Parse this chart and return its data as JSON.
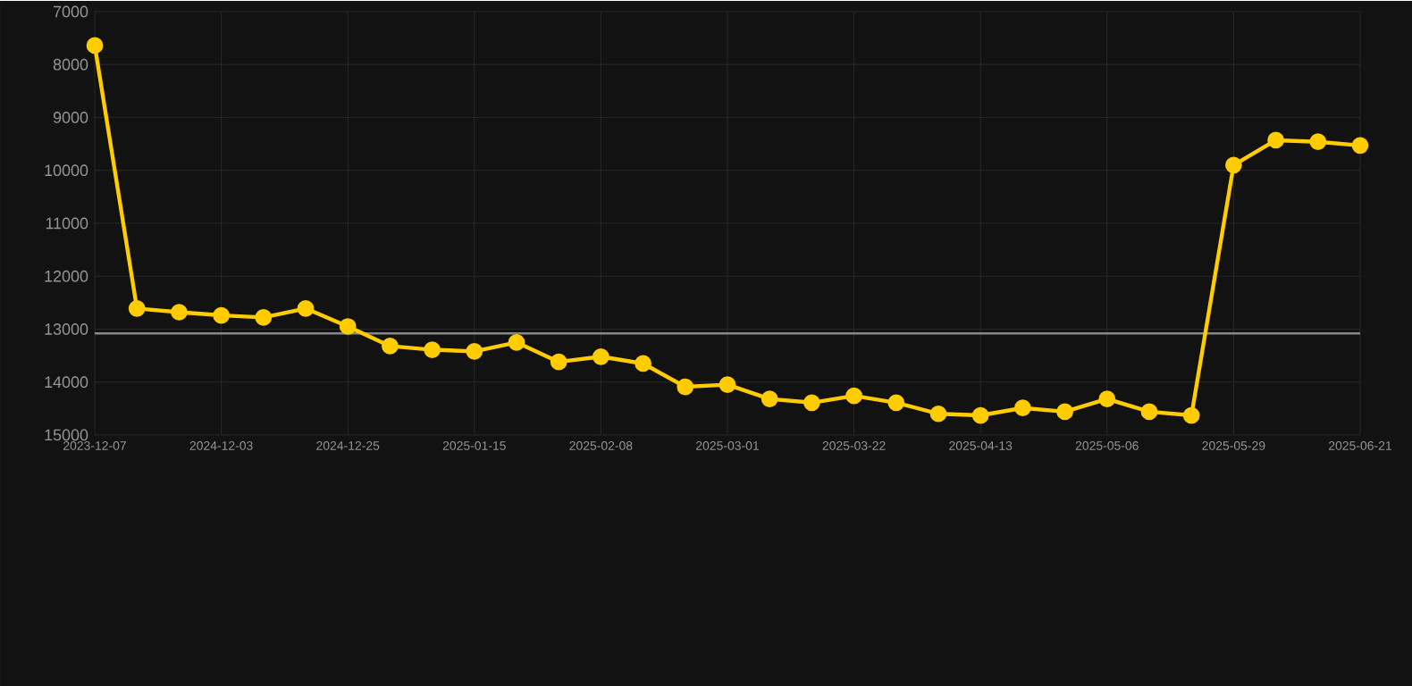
{
  "chart_data": {
    "type": "line",
    "categories": [
      "2023-12-07",
      null,
      null,
      "2024-12-03",
      null,
      null,
      "2024-12-25",
      null,
      null,
      "2025-01-15",
      null,
      null,
      "2025-02-08",
      null,
      null,
      "2025-03-01",
      null,
      null,
      "2025-03-22",
      null,
      null,
      "2025-04-13",
      null,
      null,
      "2025-05-06",
      null,
      null,
      "2025-05-29",
      null,
      null,
      "2025-06-21"
    ],
    "series": [
      {
        "color": "#ffcc00",
        "values": [
          7640,
          12610,
          12680,
          12740,
          12780,
          12610,
          12950,
          13320,
          13390,
          13420,
          13250,
          13620,
          13520,
          13650,
          14090,
          14050,
          14320,
          14390,
          14260,
          14390,
          14600,
          14630,
          14490,
          14560,
          14320,
          14560,
          14630,
          9900,
          9430,
          9460,
          9530
        ]
      }
    ],
    "ylim": [
      15000,
      7000
    ],
    "yticks": [
      7000,
      8000,
      9000,
      10000,
      11000,
      12000,
      13000,
      14000,
      15000
    ],
    "ref_lines": [
      {
        "axis": "y",
        "value": 13080,
        "color": "#888888"
      }
    ],
    "grid": true,
    "marker": "circle",
    "line_style": "solid"
  }
}
